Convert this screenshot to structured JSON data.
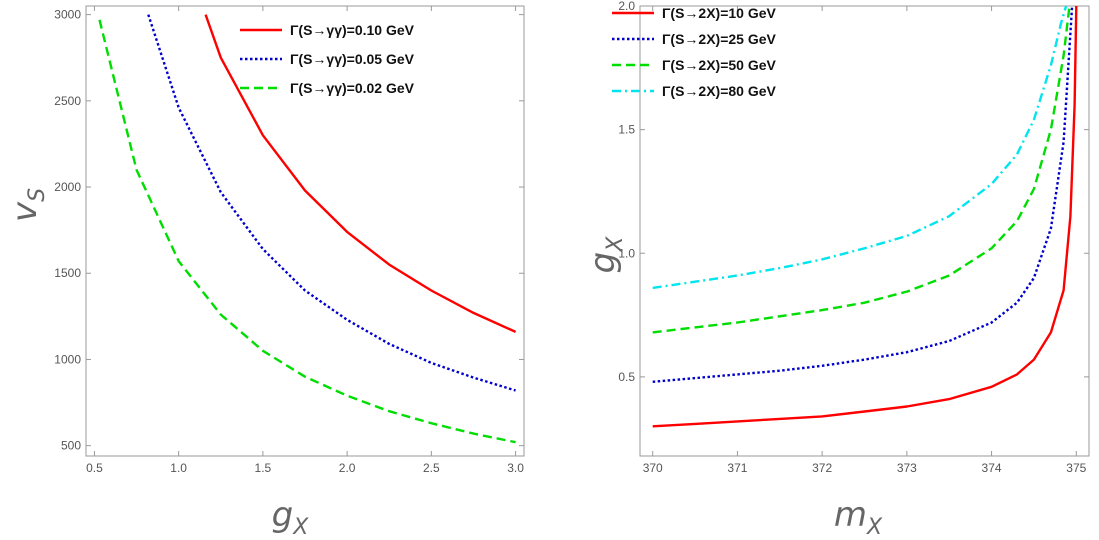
{
  "chart_data": [
    {
      "type": "line",
      "xlabel": "g",
      "xlabel_sub": "X",
      "ylabel": "v",
      "ylabel_sub": "S",
      "xlim": [
        0.45,
        3.05
      ],
      "ylim": [
        440,
        3050
      ],
      "xticks": [
        {
          "v": 0.5,
          "label": "0.5"
        },
        {
          "v": 1.0,
          "label": "1.0"
        },
        {
          "v": 1.5,
          "label": "1.5"
        },
        {
          "v": 2.0,
          "label": "2.0"
        },
        {
          "v": 2.5,
          "label": "2.5"
        },
        {
          "v": 3.0,
          "label": "3.0"
        }
      ],
      "yticks": [
        {
          "v": 500,
          "label": "500"
        },
        {
          "v": 1000,
          "label": "1000"
        },
        {
          "v": 1500,
          "label": "1500"
        },
        {
          "v": 2000,
          "label": "2000"
        },
        {
          "v": 2500,
          "label": "2500"
        },
        {
          "v": 3000,
          "label": "3000"
        }
      ],
      "legend_position": "top-right",
      "series": [
        {
          "name": "Γ(S→γγ)=0.10 GeV",
          "color": "#ff0000",
          "dash": "solid",
          "x": [
            1.16,
            1.25,
            1.5,
            1.75,
            2.0,
            2.25,
            2.5,
            2.75,
            3.0
          ],
          "y": [
            3000,
            2750,
            2300,
            1980,
            1740,
            1550,
            1400,
            1270,
            1160
          ]
        },
        {
          "name": "Γ(S→γγ)=0.05 GeV",
          "color": "#0000cc",
          "dash": "dotted",
          "x": [
            0.82,
            1.0,
            1.25,
            1.5,
            1.75,
            2.0,
            2.25,
            2.5,
            2.75,
            3.0
          ],
          "y": [
            3000,
            2460,
            1970,
            1640,
            1400,
            1230,
            1090,
            980,
            895,
            820
          ]
        },
        {
          "name": "Γ(S→γγ)=0.02 GeV",
          "color": "#00dd00",
          "dash": "dashed",
          "x": [
            0.53,
            0.75,
            1.0,
            1.25,
            1.5,
            1.75,
            2.0,
            2.25,
            2.5,
            2.75,
            3.0
          ],
          "y": [
            2970,
            2100,
            1570,
            1260,
            1050,
            900,
            790,
            700,
            630,
            570,
            520
          ]
        }
      ]
    },
    {
      "type": "line",
      "xlabel": "m",
      "xlabel_sub": "X",
      "ylabel": "g",
      "ylabel_sub": "X",
      "xlim": [
        369.85,
        375.15
      ],
      "ylim": [
        0.18,
        2.0
      ],
      "xticks": [
        {
          "v": 370,
          "label": "370"
        },
        {
          "v": 371,
          "label": "371"
        },
        {
          "v": 372,
          "label": "372"
        },
        {
          "v": 373,
          "label": "373"
        },
        {
          "v": 374,
          "label": "374"
        },
        {
          "v": 375,
          "label": "375"
        }
      ],
      "yticks": [
        {
          "v": 0.5,
          "label": "0.5"
        },
        {
          "v": 1.0,
          "label": "1.0"
        },
        {
          "v": 1.5,
          "label": "1.5"
        },
        {
          "v": 2.0,
          "label": "2.0"
        }
      ],
      "legend_position": "top-left",
      "series": [
        {
          "name": "Γ(S→2X)=10 GeV",
          "color": "#ff0000",
          "dash": "solid",
          "x": [
            370.0,
            370.5,
            371.0,
            371.5,
            372.0,
            372.5,
            373.0,
            373.5,
            374.0,
            374.3,
            374.5,
            374.7,
            374.85,
            374.93,
            374.98,
            375.0
          ],
          "y": [
            0.3,
            0.31,
            0.32,
            0.33,
            0.34,
            0.36,
            0.38,
            0.41,
            0.46,
            0.51,
            0.57,
            0.68,
            0.85,
            1.15,
            1.6,
            2.0
          ]
        },
        {
          "name": "Γ(S→2X)=25 GeV",
          "color": "#0000cc",
          "dash": "dotted",
          "x": [
            370.0,
            370.5,
            371.0,
            371.5,
            372.0,
            372.5,
            373.0,
            373.5,
            374.0,
            374.3,
            374.5,
            374.7,
            374.85,
            374.95
          ],
          "y": [
            0.48,
            0.495,
            0.51,
            0.525,
            0.545,
            0.57,
            0.6,
            0.645,
            0.72,
            0.8,
            0.9,
            1.1,
            1.45,
            2.0
          ]
        },
        {
          "name": "Γ(S→2X)=50 GeV",
          "color": "#00dd00",
          "dash": "dashed",
          "x": [
            370.0,
            370.5,
            371.0,
            371.5,
            372.0,
            372.5,
            373.0,
            373.5,
            374.0,
            374.3,
            374.5,
            374.7,
            374.85,
            374.92
          ],
          "y": [
            0.68,
            0.7,
            0.72,
            0.745,
            0.77,
            0.8,
            0.845,
            0.91,
            1.02,
            1.13,
            1.26,
            1.5,
            1.8,
            2.0
          ]
        },
        {
          "name": "Γ(S→2X)=80 GeV",
          "color": "#00e5ee",
          "dash": "dashdot",
          "x": [
            370.0,
            370.5,
            371.0,
            371.5,
            372.0,
            372.5,
            373.0,
            373.5,
            374.0,
            374.3,
            374.5,
            374.7,
            374.82,
            374.88
          ],
          "y": [
            0.86,
            0.885,
            0.91,
            0.94,
            0.975,
            1.02,
            1.07,
            1.15,
            1.28,
            1.4,
            1.54,
            1.76,
            1.93,
            2.0
          ]
        }
      ]
    }
  ]
}
